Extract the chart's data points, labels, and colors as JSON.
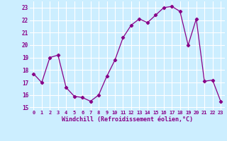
{
  "x": [
    0,
    1,
    2,
    3,
    4,
    5,
    6,
    7,
    8,
    9,
    10,
    11,
    12,
    13,
    14,
    15,
    16,
    17,
    18,
    19,
    20,
    21,
    22,
    23
  ],
  "y": [
    17.7,
    17.0,
    19.0,
    19.2,
    16.6,
    15.9,
    15.8,
    15.5,
    16.0,
    17.5,
    18.8,
    20.6,
    21.6,
    22.1,
    21.8,
    22.4,
    23.0,
    23.1,
    22.7,
    20.0,
    22.1,
    17.1,
    17.2,
    15.5
  ],
  "line_color": "#880088",
  "marker": "D",
  "marker_size": 2.2,
  "bg_color": "#cceeff",
  "grid_color": "#ffffff",
  "xlabel": "Windchill (Refroidissement éolien,°C)",
  "xlabel_color": "#880088",
  "tick_color": "#880088",
  "ylim": [
    14.8,
    23.5
  ],
  "xlim": [
    -0.5,
    23.5
  ],
  "yticks": [
    15,
    16,
    17,
    18,
    19,
    20,
    21,
    22,
    23
  ],
  "xticks": [
    0,
    1,
    2,
    3,
    4,
    5,
    6,
    7,
    8,
    9,
    10,
    11,
    12,
    13,
    14,
    15,
    16,
    17,
    18,
    19,
    20,
    21,
    22,
    23
  ],
  "xtick_labels": [
    "0",
    "1",
    "2",
    "3",
    "4",
    "5",
    "6",
    "7",
    "8",
    "9",
    "10",
    "11",
    "12",
    "13",
    "14",
    "15",
    "16",
    "17",
    "18",
    "19",
    "20",
    "21",
    "22",
    "23"
  ],
  "ytick_labels": [
    "15",
    "16",
    "17",
    "18",
    "19",
    "20",
    "21",
    "22",
    "23"
  ]
}
